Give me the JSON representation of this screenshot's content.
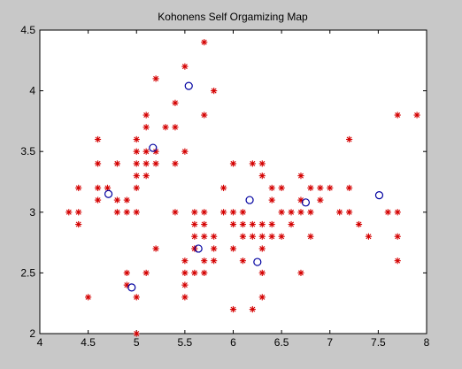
{
  "window": {
    "background": "#c8c8c8"
  },
  "chart_data": {
    "type": "scatter",
    "title": "Kohonens Self Orgamizing Map",
    "xlabel": "",
    "ylabel": "",
    "xlim": [
      4,
      8
    ],
    "ylim": [
      2,
      4.5
    ],
    "xticks": [
      "4",
      "4.5",
      "5",
      "5.5",
      "6",
      "6.5",
      "7",
      "7.5",
      "8"
    ],
    "yticks": [
      "2",
      "2.5",
      "3",
      "3.5",
      "4",
      "4.5"
    ],
    "grid": false,
    "legend": "none",
    "series": [
      {
        "marker": "asterisk",
        "color": "#d40000",
        "points": [
          [
            4.3,
            3.0
          ],
          [
            4.4,
            3.2
          ],
          [
            4.4,
            3.0
          ],
          [
            4.4,
            2.9
          ],
          [
            4.5,
            2.3
          ],
          [
            4.6,
            3.6
          ],
          [
            4.6,
            3.4
          ],
          [
            4.6,
            3.2
          ],
          [
            4.6,
            3.1
          ],
          [
            4.7,
            3.2
          ],
          [
            4.8,
            3.4
          ],
          [
            4.8,
            3.1
          ],
          [
            4.8,
            3.0
          ],
          [
            4.9,
            3.1
          ],
          [
            4.9,
            3.0
          ],
          [
            4.9,
            2.5
          ],
          [
            4.9,
            2.4
          ],
          [
            5.0,
            3.6
          ],
          [
            5.0,
            3.5
          ],
          [
            5.0,
            3.4
          ],
          [
            5.0,
            3.3
          ],
          [
            5.0,
            3.2
          ],
          [
            5.0,
            3.0
          ],
          [
            5.0,
            2.3
          ],
          [
            5.0,
            2.0
          ],
          [
            5.1,
            3.8
          ],
          [
            5.1,
            3.7
          ],
          [
            5.1,
            3.5
          ],
          [
            5.1,
            3.4
          ],
          [
            5.1,
            3.3
          ],
          [
            5.1,
            2.5
          ],
          [
            5.2,
            4.1
          ],
          [
            5.2,
            3.5
          ],
          [
            5.2,
            3.4
          ],
          [
            5.2,
            2.7
          ],
          [
            5.3,
            3.7
          ],
          [
            5.4,
            3.9
          ],
          [
            5.4,
            3.7
          ],
          [
            5.4,
            3.4
          ],
          [
            5.4,
            3.0
          ],
          [
            5.5,
            4.2
          ],
          [
            5.5,
            3.5
          ],
          [
            5.5,
            2.6
          ],
          [
            5.5,
            2.5
          ],
          [
            5.5,
            2.4
          ],
          [
            5.5,
            2.3
          ],
          [
            5.6,
            3.0
          ],
          [
            5.6,
            2.9
          ],
          [
            5.6,
            2.8
          ],
          [
            5.6,
            2.7
          ],
          [
            5.6,
            2.5
          ],
          [
            5.7,
            4.4
          ],
          [
            5.7,
            3.8
          ],
          [
            5.7,
            3.0
          ],
          [
            5.7,
            2.9
          ],
          [
            5.7,
            2.8
          ],
          [
            5.7,
            2.6
          ],
          [
            5.7,
            2.5
          ],
          [
            5.8,
            4.0
          ],
          [
            5.8,
            2.8
          ],
          [
            5.8,
            2.7
          ],
          [
            5.8,
            2.6
          ],
          [
            5.9,
            3.2
          ],
          [
            5.9,
            3.0
          ],
          [
            6.0,
            3.4
          ],
          [
            6.0,
            3.0
          ],
          [
            6.0,
            2.9
          ],
          [
            6.0,
            2.7
          ],
          [
            6.0,
            2.2
          ],
          [
            6.1,
            3.0
          ],
          [
            6.1,
            2.9
          ],
          [
            6.1,
            2.8
          ],
          [
            6.1,
            2.6
          ],
          [
            6.2,
            3.4
          ],
          [
            6.2,
            2.9
          ],
          [
            6.2,
            2.8
          ],
          [
            6.2,
            2.2
          ],
          [
            6.3,
            3.4
          ],
          [
            6.3,
            3.3
          ],
          [
            6.3,
            2.9
          ],
          [
            6.3,
            2.8
          ],
          [
            6.3,
            2.7
          ],
          [
            6.3,
            2.5
          ],
          [
            6.3,
            2.3
          ],
          [
            6.4,
            3.2
          ],
          [
            6.4,
            3.1
          ],
          [
            6.4,
            2.9
          ],
          [
            6.4,
            2.8
          ],
          [
            6.5,
            3.2
          ],
          [
            6.5,
            3.0
          ],
          [
            6.5,
            2.8
          ],
          [
            6.6,
            3.0
          ],
          [
            6.6,
            2.9
          ],
          [
            6.7,
            3.3
          ],
          [
            6.7,
            3.1
          ],
          [
            6.7,
            3.0
          ],
          [
            6.7,
            2.5
          ],
          [
            6.8,
            3.2
          ],
          [
            6.8,
            3.0
          ],
          [
            6.8,
            2.8
          ],
          [
            6.9,
            3.2
          ],
          [
            6.9,
            3.1
          ],
          [
            7.0,
            3.2
          ],
          [
            7.1,
            3.0
          ],
          [
            7.2,
            3.6
          ],
          [
            7.2,
            3.2
          ],
          [
            7.2,
            3.0
          ],
          [
            7.3,
            2.9
          ],
          [
            7.4,
            2.8
          ],
          [
            7.6,
            3.0
          ],
          [
            7.7,
            3.8
          ],
          [
            7.7,
            3.0
          ],
          [
            7.7,
            2.8
          ],
          [
            7.7,
            2.6
          ],
          [
            7.9,
            3.8
          ]
        ]
      },
      {
        "marker": "circle",
        "color": "#0000a0",
        "points": [
          [
            4.71,
            3.15
          ],
          [
            4.95,
            2.38
          ],
          [
            5.17,
            3.53
          ],
          [
            5.54,
            4.04
          ],
          [
            5.64,
            2.7
          ],
          [
            6.17,
            3.1
          ],
          [
            6.25,
            2.59
          ],
          [
            6.75,
            3.08
          ],
          [
            7.51,
            3.14
          ]
        ]
      }
    ]
  }
}
